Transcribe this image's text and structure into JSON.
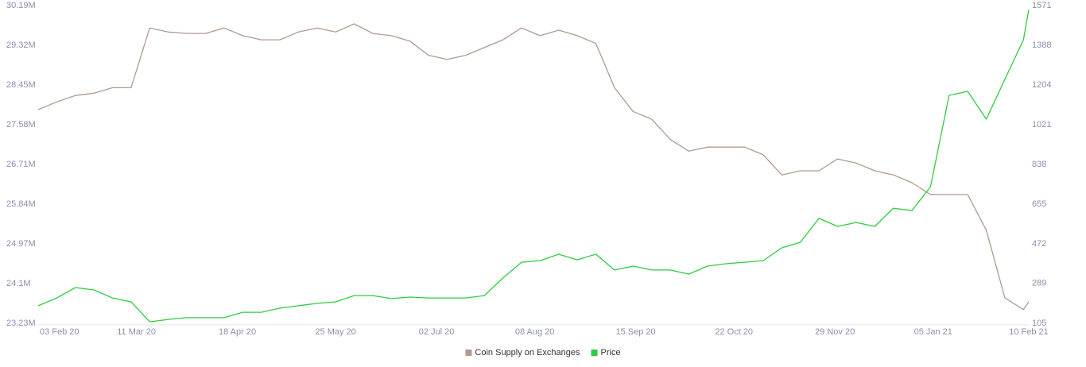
{
  "chart_data": {
    "type": "line",
    "x": [
      "03 Feb 20",
      "10 Feb 20",
      "17 Feb 20",
      "24 Feb 20",
      "02 Mar 20",
      "09 Mar 20",
      "16 Mar 20",
      "23 Mar 20",
      "30 Mar 20",
      "06 Apr 20",
      "13 Apr 20",
      "20 Apr 20",
      "27 Apr 20",
      "04 May 20",
      "11 May 20",
      "18 May 20",
      "25 May 20",
      "01 Jun 20",
      "08 Jun 20",
      "15 Jun 20",
      "22 Jun 20",
      "29 Jun 20",
      "06 Jul 20",
      "13 Jul 20",
      "20 Jul 20",
      "27 Jul 20",
      "03 Aug 20",
      "10 Aug 20",
      "17 Aug 20",
      "24 Aug 20",
      "31 Aug 20",
      "07 Sep 20",
      "14 Sep 20",
      "21 Sep 20",
      "28 Sep 20",
      "05 Oct 20",
      "12 Oct 20",
      "19 Oct 20",
      "26 Oct 20",
      "02 Nov 20",
      "09 Nov 20",
      "16 Nov 20",
      "23 Nov 20",
      "30 Nov 20",
      "07 Dec 20",
      "14 Dec 20",
      "21 Dec 20",
      "28 Dec 20",
      "04 Jan 21",
      "11 Jan 21",
      "18 Jan 21",
      "25 Jan 21",
      "01 Feb 21",
      "08 Feb 21",
      "10 Feb 21"
    ],
    "xlim": [
      "03 Feb 20",
      "10 Feb 21"
    ],
    "xticks": [
      "03 Feb 20",
      "11 Mar 20",
      "18 Apr 20",
      "25 May 20",
      "02 Jul 20",
      "08 Aug 20",
      "15 Sep 20",
      "22 Oct 20",
      "29 Nov 20",
      "05 Jan 21",
      "10 Feb 21"
    ],
    "ylim": [
      23230000,
      30190000
    ],
    "yticks": [
      {
        "value": 23230000,
        "label": "23.23M"
      },
      {
        "value": 24100000,
        "label": "24.1M"
      },
      {
        "value": 24970000,
        "label": "24.97M"
      },
      {
        "value": 25840000,
        "label": "25.84M"
      },
      {
        "value": 26710000,
        "label": "26.71M"
      },
      {
        "value": 27580000,
        "label": "27.58M"
      },
      {
        "value": 28450000,
        "label": "28.45M"
      },
      {
        "value": 29320000,
        "label": "29.32M"
      },
      {
        "value": 30190000,
        "label": "30.19M"
      }
    ],
    "y2lim": [
      105,
      1571
    ],
    "y2ticks": [
      105,
      289,
      472,
      655,
      838,
      1021,
      1204,
      1388,
      1571
    ],
    "legend": "bottom",
    "series": [
      {
        "name": "Coin Supply on Exchanges",
        "color": "#b09a90",
        "values": [
          27910000,
          28080000,
          28220000,
          28270000,
          28390000,
          28390000,
          29700000,
          29610000,
          29580000,
          29580000,
          29700000,
          29530000,
          29440000,
          29440000,
          29610000,
          29700000,
          29610000,
          29790000,
          29580000,
          29530000,
          29410000,
          29100000,
          29010000,
          29100000,
          29270000,
          29440000,
          29700000,
          29530000,
          29650000,
          29530000,
          29360000,
          28390000,
          27870000,
          27700000,
          27260000,
          27000000,
          27090000,
          27090000,
          27090000,
          26920000,
          26480000,
          26570000,
          26570000,
          26830000,
          26740000,
          26570000,
          26480000,
          26310000,
          26050000,
          26050000,
          26050000,
          25270000,
          23790000,
          23530000,
          23700000
        ]
      },
      {
        "name": "Price",
        "color": "#2ecc40",
        "axis": "y2",
        "values": [
          186,
          222,
          270,
          259,
          222,
          204,
          112,
          123,
          131,
          131,
          131,
          156,
          156,
          175,
          186,
          197,
          204,
          233,
          233,
          219,
          226,
          222,
          222,
          222,
          233,
          314,
          387,
          394,
          424,
          398,
          424,
          351,
          369,
          351,
          351,
          332,
          369,
          380,
          387,
          394,
          453,
          479,
          589,
          552,
          570,
          552,
          636,
          625,
          735,
          1157,
          1175,
          1047,
          1230,
          1413,
          1552
        ]
      }
    ]
  }
}
